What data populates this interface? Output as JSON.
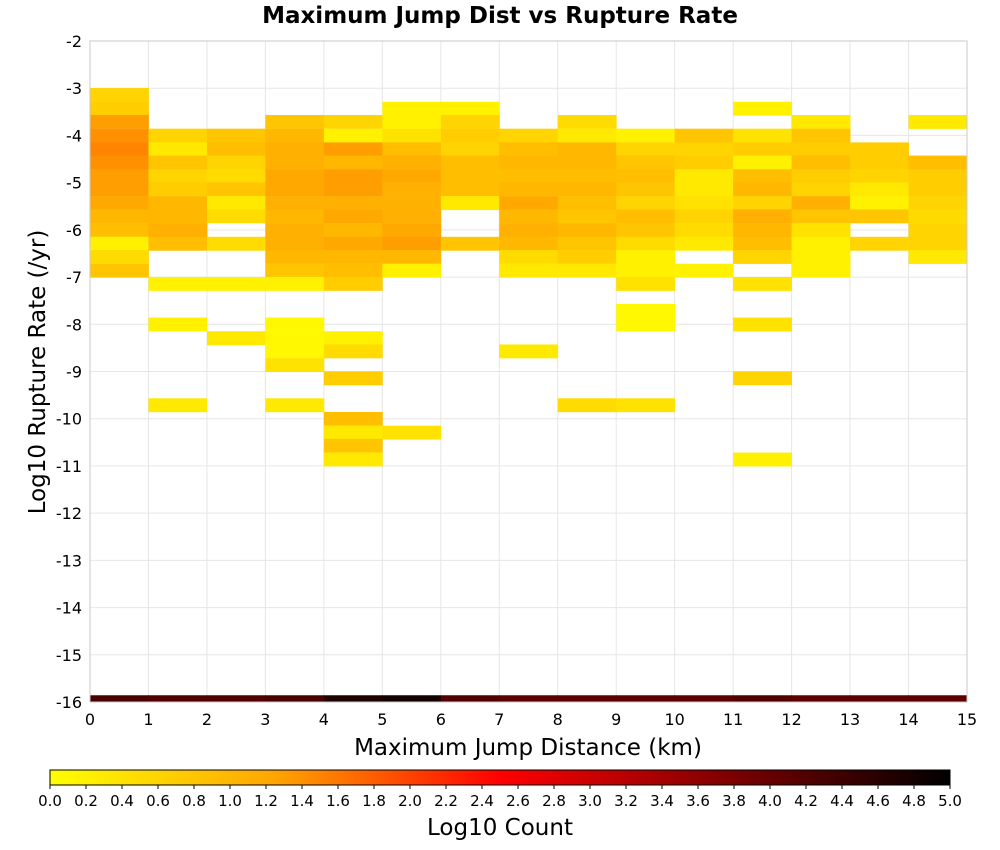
{
  "chart_data": {
    "type": "heatmap",
    "title": "Maximum Jump Dist vs Rupture Rate",
    "xlabel": "Maximum Jump Distance (km)",
    "ylabel": "Log10 Rupture Rate (/yr)",
    "xlim": [
      0,
      15
    ],
    "ylim": [
      -16,
      -2
    ],
    "x_ticks": [
      "0",
      "1",
      "2",
      "3",
      "4",
      "5",
      "6",
      "7",
      "8",
      "9",
      "10",
      "11",
      "12",
      "13",
      "14",
      "15"
    ],
    "y_ticks": [
      "-2",
      "-3",
      "-4",
      "-5",
      "-6",
      "-7",
      "-8",
      "-9",
      "-10",
      "-11",
      "-12",
      "-13",
      "-14",
      "-15",
      "-16"
    ],
    "grid": true,
    "x_bin_width": 1,
    "y_bin_width": 0.2857,
    "colorbar": {
      "label": "Log10 Count",
      "min": 0.0,
      "max": 5.0,
      "ticks": [
        "0.0",
        "0.2",
        "0.4",
        "0.6",
        "0.8",
        "1.0",
        "1.2",
        "1.4",
        "1.6",
        "1.8",
        "2.0",
        "2.2",
        "2.4",
        "2.6",
        "2.8",
        "3.0",
        "3.2",
        "3.4",
        "3.6",
        "3.8",
        "4.0",
        "4.2",
        "4.4",
        "4.6",
        "4.8",
        "5.0"
      ],
      "stops": [
        "#ffff00",
        "#ffa500",
        "#ff0000",
        "#800000",
        "#000000"
      ],
      "placement": "bottom"
    },
    "cells": [
      {
        "x": 0,
        "y": -3.14,
        "v": 0.6
      },
      {
        "x": 0,
        "y": -3.43,
        "v": 0.7
      },
      {
        "x": 0,
        "y": -3.71,
        "v": 1.3
      },
      {
        "x": 0,
        "y": -4.0,
        "v": 1.4
      },
      {
        "x": 0,
        "y": -4.29,
        "v": 1.5
      },
      {
        "x": 0,
        "y": -4.57,
        "v": 1.4
      },
      {
        "x": 0,
        "y": -4.86,
        "v": 1.3
      },
      {
        "x": 0,
        "y": -5.14,
        "v": 1.3
      },
      {
        "x": 0,
        "y": -5.43,
        "v": 1.2
      },
      {
        "x": 0,
        "y": -5.71,
        "v": 1.0
      },
      {
        "x": 0,
        "y": -6.0,
        "v": 0.9
      },
      {
        "x": 0,
        "y": -6.29,
        "v": 0.2
      },
      {
        "x": 0,
        "y": -6.57,
        "v": 0.5
      },
      {
        "x": 0,
        "y": -6.86,
        "v": 0.8
      },
      {
        "x": 1,
        "y": -4.0,
        "v": 0.6
      },
      {
        "x": 1,
        "y": -4.29,
        "v": 0.3
      },
      {
        "x": 1,
        "y": -4.57,
        "v": 0.8
      },
      {
        "x": 1,
        "y": -4.86,
        "v": 0.6
      },
      {
        "x": 1,
        "y": -5.14,
        "v": 0.7
      },
      {
        "x": 1,
        "y": -5.43,
        "v": 1.0
      },
      {
        "x": 1,
        "y": -5.71,
        "v": 1.0
      },
      {
        "x": 1,
        "y": -6.0,
        "v": 1.1
      },
      {
        "x": 1,
        "y": -6.29,
        "v": 0.9
      },
      {
        "x": 1,
        "y": -7.14,
        "v": 0.2
      },
      {
        "x": 1,
        "y": -8.0,
        "v": 0.2
      },
      {
        "x": 1,
        "y": -9.71,
        "v": 0.3
      },
      {
        "x": 2,
        "y": -4.0,
        "v": 0.8
      },
      {
        "x": 2,
        "y": -4.29,
        "v": 0.9
      },
      {
        "x": 2,
        "y": -4.57,
        "v": 0.6
      },
      {
        "x": 2,
        "y": -4.86,
        "v": 0.5
      },
      {
        "x": 2,
        "y": -5.14,
        "v": 0.8
      },
      {
        "x": 2,
        "y": -5.43,
        "v": 0.3
      },
      {
        "x": 2,
        "y": -5.71,
        "v": 0.5
      },
      {
        "x": 2,
        "y": -6.29,
        "v": 0.5
      },
      {
        "x": 2,
        "y": -7.14,
        "v": 0.2
      },
      {
        "x": 2,
        "y": -8.29,
        "v": 0.3
      },
      {
        "x": 3,
        "y": -3.71,
        "v": 0.8
      },
      {
        "x": 3,
        "y": -4.0,
        "v": 1.0
      },
      {
        "x": 3,
        "y": -4.29,
        "v": 1.1
      },
      {
        "x": 3,
        "y": -4.57,
        "v": 1.1
      },
      {
        "x": 3,
        "y": -4.86,
        "v": 1.2
      },
      {
        "x": 3,
        "y": -5.14,
        "v": 1.2
      },
      {
        "x": 3,
        "y": -5.43,
        "v": 1.1
      },
      {
        "x": 3,
        "y": -5.71,
        "v": 1.0
      },
      {
        "x": 3,
        "y": -6.0,
        "v": 1.1
      },
      {
        "x": 3,
        "y": -6.29,
        "v": 1.1
      },
      {
        "x": 3,
        "y": -6.57,
        "v": 1.0
      },
      {
        "x": 3,
        "y": -6.86,
        "v": 0.8
      },
      {
        "x": 3,
        "y": -7.14,
        "v": 0.2
      },
      {
        "x": 3,
        "y": -8.0,
        "v": 0.1
      },
      {
        "x": 3,
        "y": -8.29,
        "v": 0.1
      },
      {
        "x": 3,
        "y": -8.57,
        "v": 0.1
      },
      {
        "x": 3,
        "y": -8.86,
        "v": 0.4
      },
      {
        "x": 3,
        "y": -9.71,
        "v": 0.3
      },
      {
        "x": 4,
        "y": -3.71,
        "v": 0.6
      },
      {
        "x": 4,
        "y": -4.0,
        "v": 0.2
      },
      {
        "x": 4,
        "y": -4.29,
        "v": 1.3
      },
      {
        "x": 4,
        "y": -4.57,
        "v": 1.0
      },
      {
        "x": 4,
        "y": -4.86,
        "v": 1.3
      },
      {
        "x": 4,
        "y": -5.14,
        "v": 1.3
      },
      {
        "x": 4,
        "y": -5.43,
        "v": 1.1
      },
      {
        "x": 4,
        "y": -5.71,
        "v": 1.2
      },
      {
        "x": 4,
        "y": -6.0,
        "v": 1.0
      },
      {
        "x": 4,
        "y": -6.29,
        "v": 1.2
      },
      {
        "x": 4,
        "y": -6.57,
        "v": 1.0
      },
      {
        "x": 4,
        "y": -6.86,
        "v": 0.9
      },
      {
        "x": 4,
        "y": -7.14,
        "v": 0.7
      },
      {
        "x": 4,
        "y": -8.29,
        "v": 0.2
      },
      {
        "x": 4,
        "y": -8.57,
        "v": 0.5
      },
      {
        "x": 4,
        "y": -9.14,
        "v": 0.7
      },
      {
        "x": 4,
        "y": -10.0,
        "v": 0.9
      },
      {
        "x": 4,
        "y": -10.29,
        "v": 0.3
      },
      {
        "x": 4,
        "y": -10.57,
        "v": 0.8
      },
      {
        "x": 4,
        "y": -10.86,
        "v": 0.3
      },
      {
        "x": 5,
        "y": -3.43,
        "v": 0.2
      },
      {
        "x": 5,
        "y": -3.71,
        "v": 0.2
      },
      {
        "x": 5,
        "y": -4.0,
        "v": 0.4
      },
      {
        "x": 5,
        "y": -4.29,
        "v": 0.9
      },
      {
        "x": 5,
        "y": -4.57,
        "v": 1.1
      },
      {
        "x": 5,
        "y": -4.86,
        "v": 1.2
      },
      {
        "x": 5,
        "y": -5.14,
        "v": 1.1
      },
      {
        "x": 5,
        "y": -5.43,
        "v": 1.1
      },
      {
        "x": 5,
        "y": -5.71,
        "v": 1.1
      },
      {
        "x": 5,
        "y": -6.0,
        "v": 1.2
      },
      {
        "x": 5,
        "y": -6.29,
        "v": 1.3
      },
      {
        "x": 5,
        "y": -6.57,
        "v": 1.0
      },
      {
        "x": 5,
        "y": -6.86,
        "v": 0.2
      },
      {
        "x": 5,
        "y": -10.29,
        "v": 0.4
      },
      {
        "x": 6,
        "y": -3.43,
        "v": 0.2
      },
      {
        "x": 6,
        "y": -3.71,
        "v": 0.6
      },
      {
        "x": 6,
        "y": -4.0,
        "v": 0.7
      },
      {
        "x": 6,
        "y": -4.29,
        "v": 0.6
      },
      {
        "x": 6,
        "y": -4.57,
        "v": 0.9
      },
      {
        "x": 6,
        "y": -4.86,
        "v": 0.9
      },
      {
        "x": 6,
        "y": -5.14,
        "v": 0.9
      },
      {
        "x": 6,
        "y": -5.43,
        "v": 0.3
      },
      {
        "x": 6,
        "y": -6.29,
        "v": 0.8
      },
      {
        "x": 7,
        "y": -4.0,
        "v": 0.6
      },
      {
        "x": 7,
        "y": -4.29,
        "v": 0.9
      },
      {
        "x": 7,
        "y": -4.57,
        "v": 1.0
      },
      {
        "x": 7,
        "y": -4.86,
        "v": 0.9
      },
      {
        "x": 7,
        "y": -5.14,
        "v": 1.0
      },
      {
        "x": 7,
        "y": -5.43,
        "v": 1.2
      },
      {
        "x": 7,
        "y": -5.71,
        "v": 1.0
      },
      {
        "x": 7,
        "y": -6.0,
        "v": 1.1
      },
      {
        "x": 7,
        "y": -6.29,
        "v": 1.0
      },
      {
        "x": 7,
        "y": -6.57,
        "v": 0.5
      },
      {
        "x": 7,
        "y": -6.86,
        "v": 0.3
      },
      {
        "x": 7,
        "y": -8.57,
        "v": 0.3
      },
      {
        "x": 8,
        "y": -3.71,
        "v": 0.5
      },
      {
        "x": 8,
        "y": -4.0,
        "v": 0.3
      },
      {
        "x": 8,
        "y": -4.29,
        "v": 1.0
      },
      {
        "x": 8,
        "y": -4.57,
        "v": 1.0
      },
      {
        "x": 8,
        "y": -4.86,
        "v": 0.9
      },
      {
        "x": 8,
        "y": -5.14,
        "v": 1.0
      },
      {
        "x": 8,
        "y": -5.43,
        "v": 0.9
      },
      {
        "x": 8,
        "y": -5.71,
        "v": 0.8
      },
      {
        "x": 8,
        "y": -6.0,
        "v": 1.0
      },
      {
        "x": 8,
        "y": -6.29,
        "v": 0.8
      },
      {
        "x": 8,
        "y": -6.57,
        "v": 0.7
      },
      {
        "x": 8,
        "y": -6.86,
        "v": 0.3
      },
      {
        "x": 8,
        "y": -9.71,
        "v": 0.5
      },
      {
        "x": 9,
        "y": -4.0,
        "v": 0.2
      },
      {
        "x": 9,
        "y": -4.29,
        "v": 0.6
      },
      {
        "x": 9,
        "y": -4.57,
        "v": 0.8
      },
      {
        "x": 9,
        "y": -4.86,
        "v": 0.9
      },
      {
        "x": 9,
        "y": -5.14,
        "v": 0.8
      },
      {
        "x": 9,
        "y": -5.43,
        "v": 0.6
      },
      {
        "x": 9,
        "y": -5.71,
        "v": 0.9
      },
      {
        "x": 9,
        "y": -6.0,
        "v": 0.8
      },
      {
        "x": 9,
        "y": -6.29,
        "v": 0.5
      },
      {
        "x": 9,
        "y": -6.57,
        "v": 0.2
      },
      {
        "x": 9,
        "y": -6.86,
        "v": 0.2
      },
      {
        "x": 9,
        "y": -7.14,
        "v": 0.4
      },
      {
        "x": 9,
        "y": -7.71,
        "v": 0.1
      },
      {
        "x": 9,
        "y": -8.0,
        "v": 0.1
      },
      {
        "x": 9,
        "y": -9.71,
        "v": 0.4
      },
      {
        "x": 10,
        "y": -4.0,
        "v": 0.8
      },
      {
        "x": 10,
        "y": -4.29,
        "v": 0.6
      },
      {
        "x": 10,
        "y": -4.57,
        "v": 0.7
      },
      {
        "x": 10,
        "y": -4.86,
        "v": 0.3
      },
      {
        "x": 10,
        "y": -5.14,
        "v": 0.3
      },
      {
        "x": 10,
        "y": -5.43,
        "v": 0.4
      },
      {
        "x": 10,
        "y": -5.71,
        "v": 0.6
      },
      {
        "x": 10,
        "y": -6.0,
        "v": 0.5
      },
      {
        "x": 10,
        "y": -6.29,
        "v": 0.3
      },
      {
        "x": 10,
        "y": -6.86,
        "v": 0.2
      },
      {
        "x": 11,
        "y": -3.43,
        "v": 0.2
      },
      {
        "x": 11,
        "y": -4.0,
        "v": 0.4
      },
      {
        "x": 11,
        "y": -4.29,
        "v": 0.7
      },
      {
        "x": 11,
        "y": -4.57,
        "v": 0.2
      },
      {
        "x": 11,
        "y": -4.86,
        "v": 0.9
      },
      {
        "x": 11,
        "y": -5.14,
        "v": 1.0
      },
      {
        "x": 11,
        "y": -5.43,
        "v": 0.6
      },
      {
        "x": 11,
        "y": -5.71,
        "v": 1.1
      },
      {
        "x": 11,
        "y": -6.0,
        "v": 1.0
      },
      {
        "x": 11,
        "y": -6.29,
        "v": 0.9
      },
      {
        "x": 11,
        "y": -6.57,
        "v": 0.6
      },
      {
        "x": 11,
        "y": -7.14,
        "v": 0.4
      },
      {
        "x": 11,
        "y": -8.0,
        "v": 0.4
      },
      {
        "x": 11,
        "y": -9.14,
        "v": 0.6
      },
      {
        "x": 11,
        "y": -10.86,
        "v": 0.2
      },
      {
        "x": 12,
        "y": -3.71,
        "v": 0.3
      },
      {
        "x": 12,
        "y": -4.0,
        "v": 0.8
      },
      {
        "x": 12,
        "y": -4.29,
        "v": 0.7
      },
      {
        "x": 12,
        "y": -4.57,
        "v": 0.9
      },
      {
        "x": 12,
        "y": -4.86,
        "v": 0.7
      },
      {
        "x": 12,
        "y": -5.14,
        "v": 0.6
      },
      {
        "x": 12,
        "y": -5.43,
        "v": 1.1
      },
      {
        "x": 12,
        "y": -5.71,
        "v": 0.8
      },
      {
        "x": 12,
        "y": -6.0,
        "v": 0.4
      },
      {
        "x": 12,
        "y": -6.29,
        "v": 0.2
      },
      {
        "x": 12,
        "y": -6.57,
        "v": 0.2
      },
      {
        "x": 12,
        "y": -6.86,
        "v": 0.2
      },
      {
        "x": 13,
        "y": -4.29,
        "v": 0.7
      },
      {
        "x": 13,
        "y": -4.57,
        "v": 0.7
      },
      {
        "x": 13,
        "y": -4.86,
        "v": 0.6
      },
      {
        "x": 13,
        "y": -5.14,
        "v": 0.3
      },
      {
        "x": 13,
        "y": -5.43,
        "v": 0.2
      },
      {
        "x": 13,
        "y": -5.71,
        "v": 0.8
      },
      {
        "x": 13,
        "y": -6.29,
        "v": 0.6
      },
      {
        "x": 14,
        "y": -3.71,
        "v": 0.3
      },
      {
        "x": 14,
        "y": -4.57,
        "v": 0.9
      },
      {
        "x": 14,
        "y": -4.86,
        "v": 0.7
      },
      {
        "x": 14,
        "y": -5.14,
        "v": 0.7
      },
      {
        "x": 14,
        "y": -5.43,
        "v": 0.6
      },
      {
        "x": 14,
        "y": -5.71,
        "v": 0.5
      },
      {
        "x": 14,
        "y": -6.0,
        "v": 0.6
      },
      {
        "x": 14,
        "y": -6.29,
        "v": 0.6
      },
      {
        "x": 14,
        "y": -6.57,
        "v": 0.3
      }
    ],
    "bottom_band": [
      {
        "x": 0,
        "v": 4.3
      },
      {
        "x": 1,
        "v": 4.2
      },
      {
        "x": 2,
        "v": 4.2
      },
      {
        "x": 3,
        "v": 4.3
      },
      {
        "x": 4,
        "v": 4.7
      },
      {
        "x": 5,
        "v": 4.8
      },
      {
        "x": 6,
        "v": 4.2
      },
      {
        "x": 7,
        "v": 4.1
      },
      {
        "x": 8,
        "v": 4.1
      },
      {
        "x": 9,
        "v": 4.1
      },
      {
        "x": 10,
        "v": 4.1
      },
      {
        "x": 11,
        "v": 4.2
      },
      {
        "x": 12,
        "v": 4.1
      },
      {
        "x": 13,
        "v": 4.1
      },
      {
        "x": 14,
        "v": 4.1
      }
    ]
  }
}
